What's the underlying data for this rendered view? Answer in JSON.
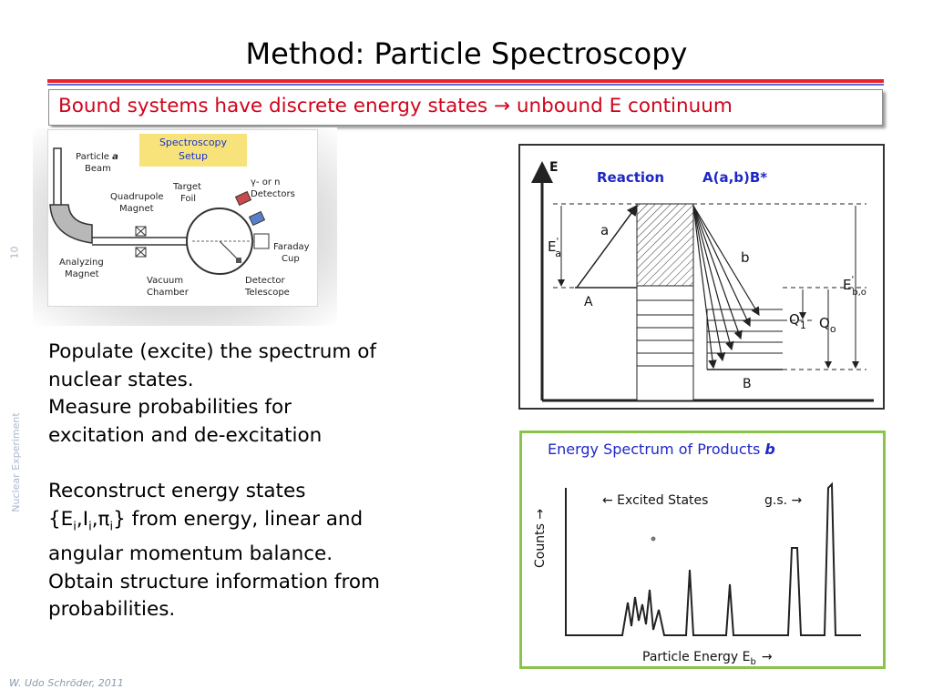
{
  "slide": {
    "title": "Method: Particle Spectroscopy",
    "subtitle": "Bound systems have discrete energy states → unbound E continuum",
    "page_number": "10",
    "topic": "Nuclear Experiment",
    "footer": "W. Udo Schröder, 2011"
  },
  "colors": {
    "subtitle": "#d0041c",
    "rule_red": "#e8232a",
    "rule_blue": "#5b6bd0",
    "accent_blue": "#1f28c7",
    "spectrum_border": "#8bc44a",
    "setup_badge": "#f7e37a"
  },
  "setup": {
    "badge_line1": "Spectroscopy",
    "badge_line2": "Setup",
    "particle_beam_1": "Particle",
    "particle_beam_letter": "a",
    "particle_beam_2": "Beam",
    "quadrupole_1": "Quadrupole",
    "quadrupole_2": "Magnet",
    "target_1": "Target",
    "target_2": "Foil",
    "gamma_1": "γ- or n",
    "gamma_2": "Detectors",
    "analyzing_1": "Analyzing",
    "analyzing_2": "Magnet",
    "vacuum_1": "Vacuum",
    "vacuum_2": "Chamber",
    "faraday_1": "Faraday",
    "faraday_2": "Cup",
    "telescope_1": "Detector",
    "telescope_2": "Telescope"
  },
  "body": {
    "p1_line1": "Populate (excite) the spectrum of",
    "p1_line2": "nuclear states.",
    "p1_line3": "Measure probabilities for",
    "p1_line4": "excitation and de-excitation",
    "p2_line1": "Reconstruct energy states",
    "p2_brace_open": "{E",
    "p2_sub_i": "i",
    "p2_comma1": ",I",
    "p2_sub_i2": "i",
    "p2_comma2": ",",
    "p2_pi": "π",
    "p2_sub_i3": "i",
    "p2_line2_rest": "} from energy, linear and",
    "p2_line3": "angular momentum balance.",
    "p2_line4": "Obtain structure information from",
    "p2_line5": "probabilities."
  },
  "reaction": {
    "axis_label": "E",
    "heading_1": "Reaction",
    "heading_2": "A(a,b)B*",
    "label_a": "a",
    "label_b": "b",
    "label_A": "A",
    "label_B": "B",
    "label_Ea": "E",
    "label_Ea_sub": "a",
    "label_Ea_sup": "'",
    "label_Ebo": "E",
    "label_Ebo_sup": "'",
    "label_Ebo_sub": "b,o",
    "label_Q1": "Q",
    "label_Q1_sub": "1",
    "label_Q0": "Q",
    "label_Q0_sub": "o"
  },
  "spectrum": {
    "title": "Energy Spectrum of Products",
    "title_symbol": "b",
    "excited_label": "← Excited States",
    "gs_label": "g.s. →",
    "ylabel": "Counts →",
    "xlabel": "Particle Energy E",
    "xlabel_sub": "b",
    "xlabel_arrow": "→"
  }
}
